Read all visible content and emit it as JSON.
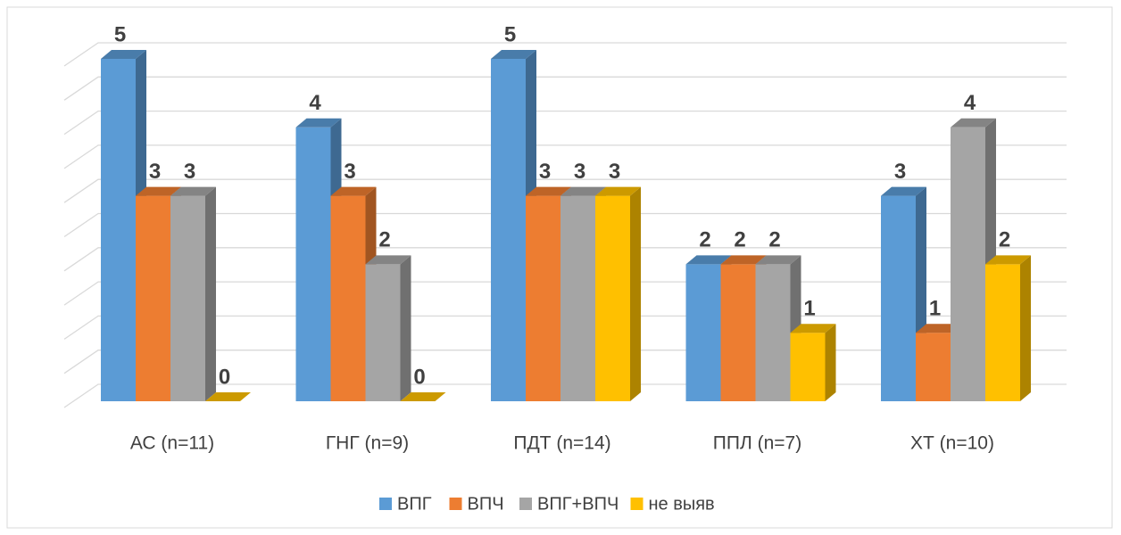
{
  "chart_data": {
    "type": "bar3d",
    "categories": [
      "АС (n=11)",
      "ГНГ (n=9)",
      "ПДТ (n=14)",
      "ППЛ (n=7)",
      "ХТ (n=10)"
    ],
    "series": [
      {
        "name": "ВПГ",
        "color": "#5b9bd5",
        "values": [
          5,
          4,
          5,
          2,
          3
        ]
      },
      {
        "name": "ВПЧ",
        "color": "#ed7d31",
        "values": [
          3,
          3,
          3,
          2,
          1
        ]
      },
      {
        "name": "ВПГ+ВПЧ",
        "color": "#a5a5a5",
        "values": [
          3,
          2,
          3,
          2,
          4
        ]
      },
      {
        "name": "не выяв",
        "color": "#ffc000",
        "values": [
          0,
          0,
          3,
          1,
          2
        ]
      }
    ],
    "ylim": [
      0,
      5
    ],
    "yticks": [
      0,
      0.5,
      1,
      1.5,
      2,
      2.5,
      3,
      3.5,
      4,
      4.5,
      5
    ],
    "grid": true,
    "legend": "bottom"
  }
}
